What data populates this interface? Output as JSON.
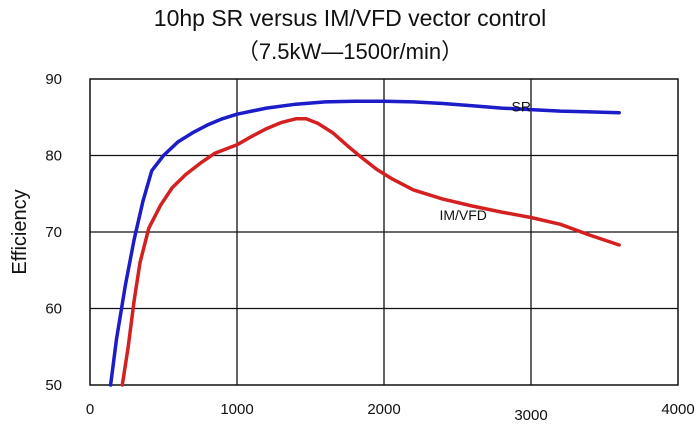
{
  "chart_data": {
    "type": "line",
    "title": "10hp SR versus IM/VFD vector control",
    "subtitle": "（7.5kW—1500r/min）",
    "xlabel": "",
    "ylabel": "Efficiency",
    "xlim": [
      0,
      4000
    ],
    "ylim": [
      50,
      90
    ],
    "xticks": [
      0,
      1000,
      2000,
      3000,
      4000
    ],
    "yticks": [
      50,
      60,
      70,
      80,
      90
    ],
    "grid": true,
    "series": [
      {
        "name": "SR",
        "color": "#1c1cc8",
        "x": [
          140,
          180,
          240,
          300,
          360,
          420,
          500,
          600,
          700,
          800,
          900,
          1000,
          1200,
          1400,
          1600,
          1800,
          2000,
          2200,
          2400,
          2600,
          2800,
          3000,
          3200,
          3400,
          3600
        ],
        "y": [
          50,
          56,
          63,
          69,
          74,
          78,
          80,
          81.8,
          83,
          84,
          84.8,
          85.4,
          86.2,
          86.7,
          87,
          87.1,
          87.1,
          87,
          86.8,
          86.5,
          86.2,
          86,
          85.8,
          85.7,
          85.6
        ]
      },
      {
        "name": "IM/VFD",
        "color": "#d42020",
        "x": [
          220,
          260,
          300,
          340,
          400,
          480,
          560,
          650,
          750,
          850,
          1000,
          1100,
          1200,
          1300,
          1400,
          1470,
          1550,
          1650,
          1750,
          1850,
          1950,
          2050,
          2200,
          2400,
          2600,
          2800,
          3000,
          3200,
          3400,
          3600
        ],
        "y": [
          50,
          55,
          61,
          66,
          70.5,
          73.5,
          75.8,
          77.5,
          79,
          80.3,
          81.4,
          82.5,
          83.5,
          84.3,
          84.8,
          84.8,
          84.2,
          83,
          81.3,
          79.7,
          78.2,
          77,
          75.5,
          74.3,
          73.4,
          72.6,
          71.9,
          71,
          69.6,
          68.3
        ]
      }
    ]
  }
}
